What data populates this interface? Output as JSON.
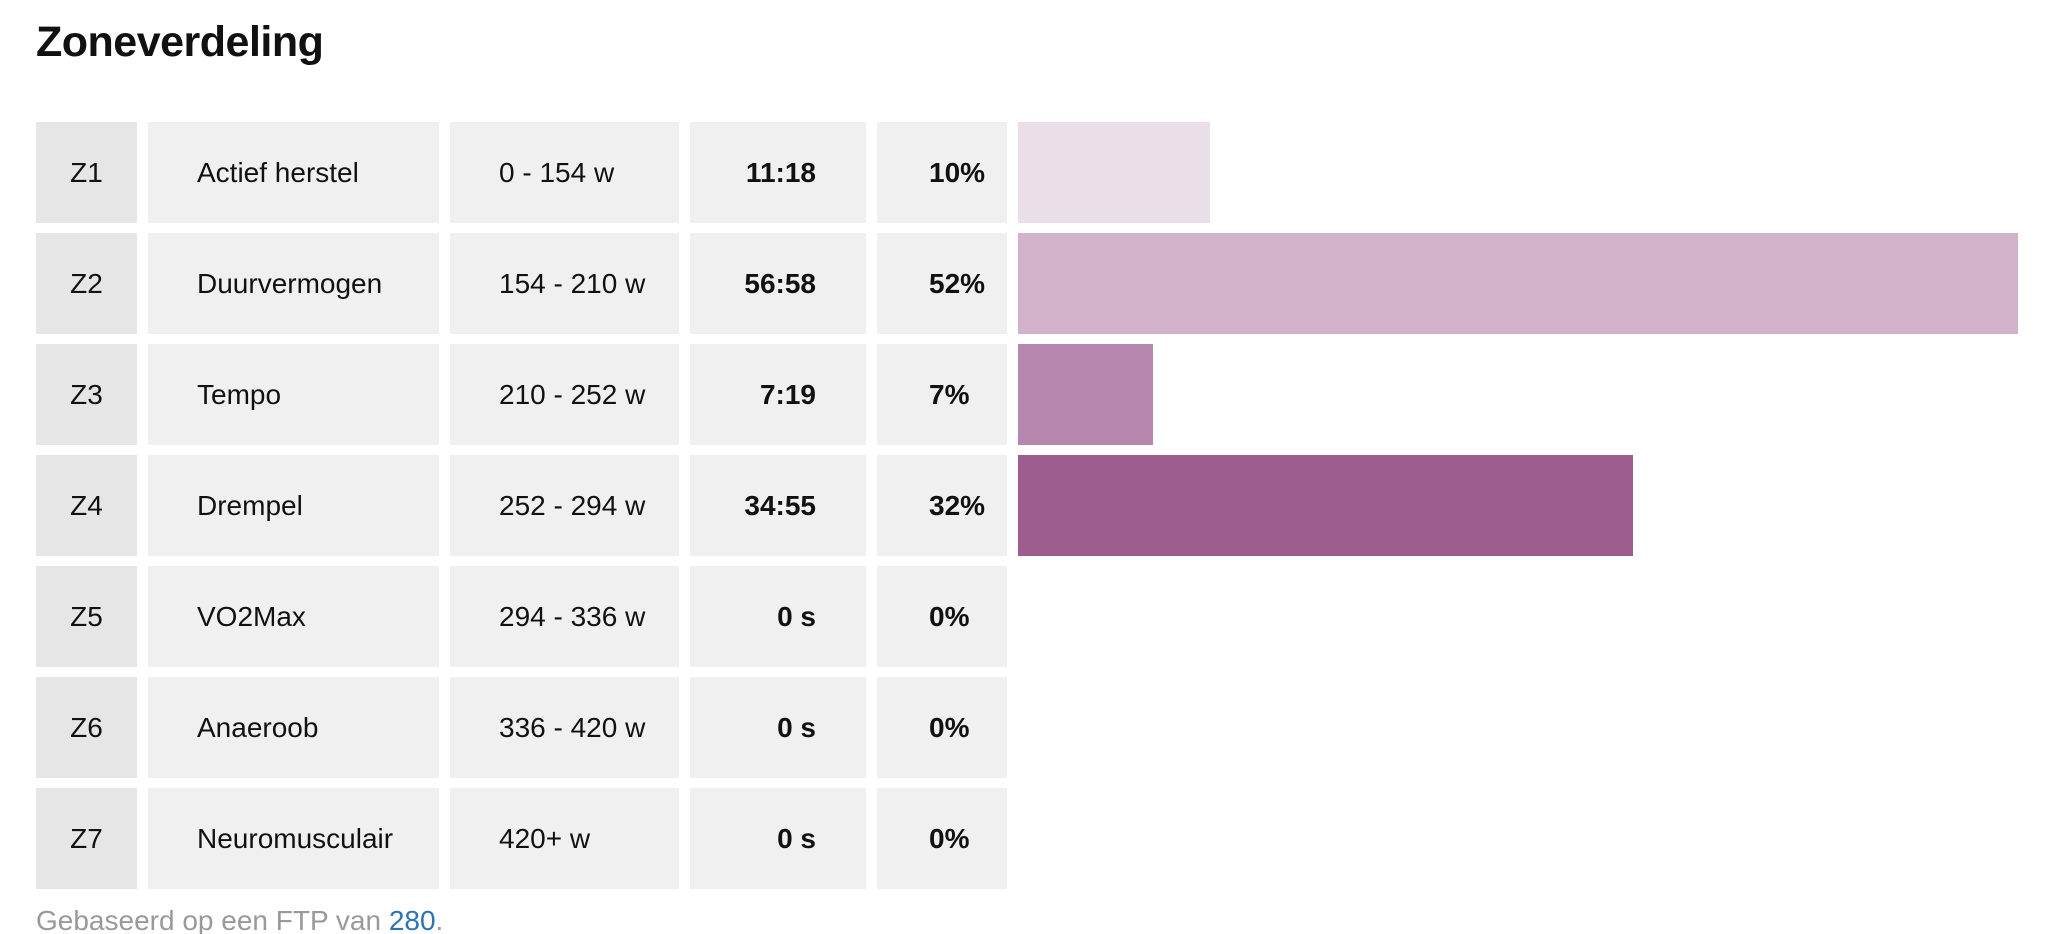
{
  "title": "Zoneverdeling",
  "chart_data": {
    "type": "bar",
    "orientation": "horizontal",
    "title": "Zoneverdeling",
    "categories": [
      "Z1",
      "Z2",
      "Z3",
      "Z4",
      "Z5",
      "Z6",
      "Z7"
    ],
    "values": [
      10,
      52,
      7,
      32,
      0,
      0,
      0
    ],
    "unit": "%",
    "xlim": [
      0,
      52
    ]
  },
  "zones": [
    {
      "zone": "Z1",
      "name": "Actief herstel",
      "range": "0 - 154 w",
      "time": "11:18",
      "percent_label": "10%",
      "percent": 10,
      "color": "#eadfe9"
    },
    {
      "zone": "Z2",
      "name": "Duurvermogen",
      "range": "154 - 210 w",
      "time": "56:58",
      "percent_label": "52%",
      "percent": 52,
      "color": "#d2b1ca"
    },
    {
      "zone": "Z3",
      "name": "Tempo",
      "range": "210 - 252 w",
      "time": "7:19",
      "percent_label": "7%",
      "percent": 7,
      "color": "#b688b0"
    },
    {
      "zone": "Z4",
      "name": "Drempel",
      "range": "252 - 294 w",
      "time": "34:55",
      "percent_label": "32%",
      "percent": 32,
      "color": "#9d5d8f"
    },
    {
      "zone": "Z5",
      "name": "VO2Max",
      "range": "294 - 336 w",
      "time": "0 s",
      "percent_label": "0%",
      "percent": 0,
      "color": "#84426f"
    },
    {
      "zone": "Z6",
      "name": "Anaeroob",
      "range": "336 - 420 w",
      "time": "0 s",
      "percent_label": "0%",
      "percent": 0,
      "color": "#6b2c58"
    },
    {
      "zone": "Z7",
      "name": "Neuromusculair",
      "range": "420+ w",
      "time": "0 s",
      "percent_label": "0%",
      "percent": 0,
      "color": "#521c42"
    }
  ],
  "footnote": {
    "prefix": "Gebaseerd op een FTP van ",
    "ftp": "280",
    "suffix": "."
  }
}
